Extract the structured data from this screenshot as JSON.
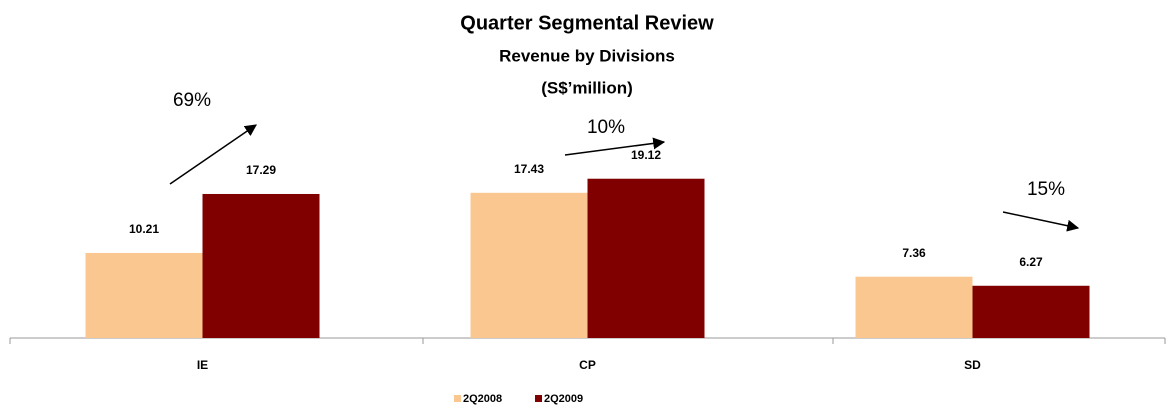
{
  "chart_data": {
    "type": "bar",
    "title": "Quarter Segmental Review",
    "subtitle": [
      "Revenue by Divisions",
      "(S$’million)"
    ],
    "categories": [
      "IE",
      "CP",
      "SD"
    ],
    "series": [
      {
        "name": "2Q2008",
        "color": "#fbc790",
        "values": [
          10.21,
          17.43,
          7.36
        ]
      },
      {
        "name": "2Q2009",
        "color": "#800000",
        "values": [
          17.29,
          19.12,
          6.27
        ]
      }
    ],
    "ylim": [
      0,
      20
    ],
    "annotations": [
      "69%",
      "10%",
      "15%"
    ],
    "legend": "bottom"
  }
}
